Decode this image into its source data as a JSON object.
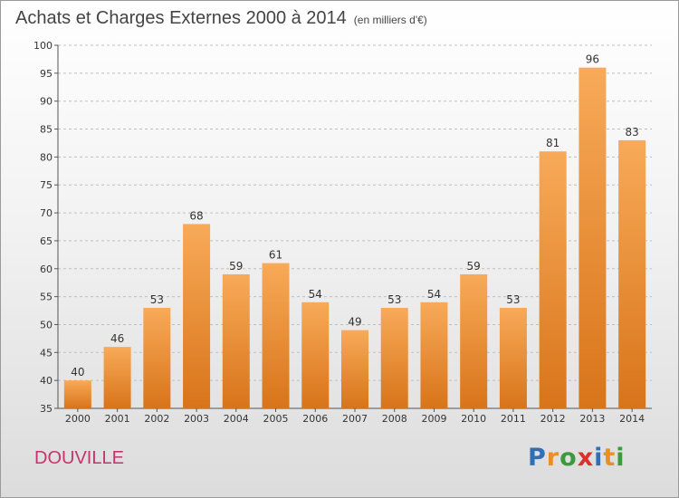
{
  "header": {
    "title": "Achats et Charges Externes 2000 à 2014",
    "subtitle": "(en milliers d'€)"
  },
  "footer": {
    "city": "DOUVILLE",
    "logo_letters": [
      {
        "char": "P",
        "color": "#2f6fb8"
      },
      {
        "char": "r",
        "color": "#e98f25"
      },
      {
        "char": "o",
        "color": "#3d9a3a"
      },
      {
        "char": "x",
        "color": "#d9322d"
      },
      {
        "char": "i",
        "color": "#2f6fb8"
      },
      {
        "char": "t",
        "color": "#e98f25"
      },
      {
        "char": "i",
        "color": "#3d9a3a"
      }
    ]
  },
  "chart_data": {
    "type": "bar",
    "title": "Achats et Charges Externes 2000 à 2014",
    "subtitle": "(en milliers d'€)",
    "categories": [
      "2000",
      "2001",
      "2002",
      "2003",
      "2004",
      "2005",
      "2006",
      "2007",
      "2008",
      "2009",
      "2010",
      "2011",
      "2012",
      "2013",
      "2014"
    ],
    "values": [
      40,
      46,
      53,
      68,
      59,
      61,
      54,
      49,
      53,
      54,
      59,
      53,
      81,
      96,
      83
    ],
    "ylim": [
      35,
      100
    ],
    "yticks": [
      35,
      40,
      45,
      50,
      55,
      60,
      65,
      70,
      75,
      80,
      85,
      90,
      95,
      100
    ],
    "xlabel": "",
    "ylabel": "",
    "grid": "horizontal-dashed",
    "colors": {
      "bar_top": "#f8aa58",
      "bar_bottom": "#d8741a",
      "grid": "#bfbfbf"
    }
  }
}
